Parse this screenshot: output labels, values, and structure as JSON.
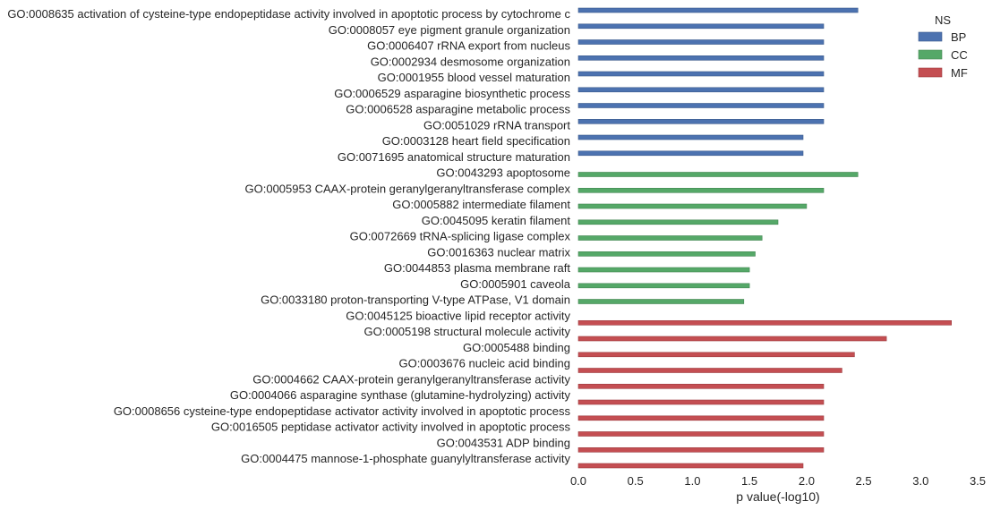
{
  "chart_data": {
    "type": "bar",
    "orientation": "horizontal",
    "title": "",
    "xlabel": "p value(-log10)",
    "ylabel": "",
    "xlim": [
      0,
      3.5
    ],
    "xticks": [
      0.0,
      0.5,
      1.0,
      1.5,
      2.0,
      2.5,
      3.0,
      3.5
    ],
    "xtick_labels": [
      "0.0",
      "0.5",
      "1.0",
      "1.5",
      "2.0",
      "2.5",
      "3.0",
      "3.5"
    ],
    "grid": false,
    "legend": {
      "title": "NS",
      "placement": "top-right",
      "entries": [
        {
          "name": "BP",
          "color": "#4c72b0"
        },
        {
          "name": "CC",
          "color": "#55a868"
        },
        {
          "name": "MF",
          "color": "#c44e52"
        }
      ]
    },
    "categories": [
      "GO:0008635 activation of cysteine-type endopeptidase activity involved in apoptotic process by cytochrome c",
      "GO:0008057 eye pigment granule organization",
      "GO:0006407 rRNA export from nucleus",
      "GO:0002934 desmosome organization",
      "GO:0001955 blood vessel maturation",
      "GO:0006529 asparagine biosynthetic process",
      "GO:0006528 asparagine metabolic process",
      "GO:0051029 rRNA transport",
      "GO:0003128 heart field specification",
      "GO:0071695 anatomical structure maturation",
      "GO:0043293 apoptosome",
      "GO:0005953 CAAX-protein geranylgeranyltransferase complex",
      "GO:0005882 intermediate filament",
      "GO:0045095 keratin filament",
      "GO:0072669 tRNA-splicing ligase complex",
      "GO:0016363 nuclear matrix",
      "GO:0044853 plasma membrane raft",
      "GO:0005901 caveola",
      "GO:0033180 proton-transporting V-type ATPase, V1 domain",
      "GO:0045125 bioactive lipid receptor activity",
      "GO:0005198 structural molecule activity",
      "GO:0005488 binding",
      "GO:0003676 nucleic acid binding",
      "GO:0004662 CAAX-protein geranylgeranyltransferase activity",
      "GO:0004066 asparagine synthase (glutamine-hydrolyzing) activity",
      "GO:0008656 cysteine-type endopeptidase activator activity involved in apoptotic process",
      "GO:0016505 peptidase activator activity involved in apoptotic process",
      "GO:0043531 ADP binding",
      "GO:0004475 mannose-1-phosphate guanylyltransferase activity"
    ],
    "series": [
      {
        "name": "BP",
        "color": "#4c72b0",
        "values": [
          2.45,
          2.15,
          2.15,
          2.15,
          2.15,
          2.15,
          2.15,
          2.15,
          1.97,
          1.97,
          null,
          null,
          null,
          null,
          null,
          null,
          null,
          null,
          null,
          null,
          null,
          null,
          null,
          null,
          null,
          null,
          null,
          null,
          null
        ]
      },
      {
        "name": "CC",
        "color": "#55a868",
        "values": [
          null,
          null,
          null,
          null,
          null,
          null,
          null,
          null,
          null,
          null,
          2.45,
          2.15,
          2.0,
          1.75,
          1.61,
          1.55,
          1.5,
          1.5,
          1.45,
          null,
          null,
          null,
          null,
          null,
          null,
          null,
          null,
          null,
          null
        ]
      },
      {
        "name": "MF",
        "color": "#c44e52",
        "values": [
          null,
          null,
          null,
          null,
          null,
          null,
          null,
          null,
          null,
          null,
          null,
          null,
          null,
          null,
          null,
          null,
          null,
          null,
          null,
          3.27,
          2.7,
          2.42,
          2.31,
          2.15,
          2.15,
          2.15,
          2.15,
          2.15,
          1.97
        ]
      }
    ]
  }
}
